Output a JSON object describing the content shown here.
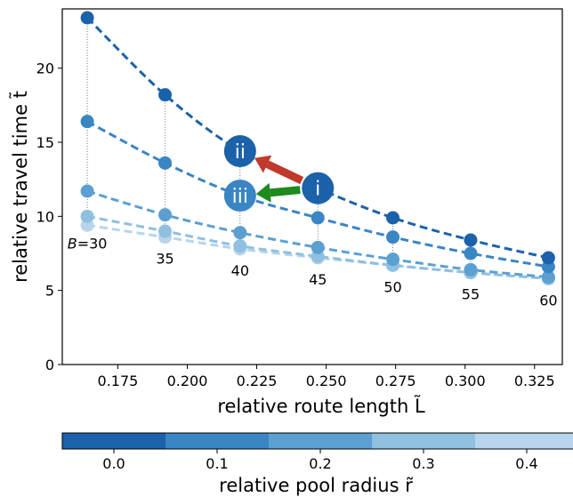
{
  "chart_data": {
    "type": "scatter",
    "xlabel": "relative route length L̃",
    "ylabel": "relative travel time t̃",
    "x_range": [
      0.155,
      0.335
    ],
    "y_range": [
      0,
      24
    ],
    "x_ticks": [
      0.175,
      0.2,
      0.225,
      0.25,
      0.275,
      0.3,
      0.325
    ],
    "x_tick_labels": [
      "0.175",
      "0.200",
      "0.225",
      "0.250",
      "0.275",
      "0.300",
      "0.325"
    ],
    "y_ticks": [
      0,
      5,
      10,
      15,
      20
    ],
    "y_tick_labels": [
      "0",
      "5",
      "10",
      "15",
      "20"
    ],
    "x": [
      0.164,
      0.192,
      0.219,
      0.247,
      0.274,
      0.302,
      0.33
    ],
    "B_labels": [
      "B=30",
      "35",
      "40",
      "45",
      "50",
      "55",
      "60"
    ],
    "series": [
      {
        "r": 0.0,
        "color": "#1c62aa",
        "values": [
          23.4,
          18.2,
          14.4,
          11.9,
          9.9,
          8.4,
          7.2
        ]
      },
      {
        "r": 0.1,
        "color": "#3a85c4",
        "values": [
          16.4,
          13.6,
          11.4,
          9.9,
          8.6,
          7.5,
          6.6
        ]
      },
      {
        "r": 0.2,
        "color": "#5ba0d0",
        "values": [
          11.7,
          10.1,
          8.9,
          7.9,
          7.1,
          6.4,
          5.9
        ]
      },
      {
        "r": 0.3,
        "color": "#8fc0e0",
        "values": [
          10.0,
          9.0,
          8.0,
          7.3,
          6.7,
          6.2,
          5.8
        ]
      },
      {
        "r": 0.4,
        "color": "#b7d4ea",
        "values": [
          9.4,
          8.6,
          7.8,
          7.2,
          6.7,
          6.2,
          5.8
        ]
      }
    ],
    "annotations": [
      {
        "label": "i",
        "x": 0.247,
        "y": 11.9,
        "color": "#1c62aa"
      },
      {
        "label": "ii",
        "x": 0.219,
        "y": 14.4,
        "color": "#1c62aa"
      },
      {
        "label": "iii",
        "x": 0.219,
        "y": 11.4,
        "color": "#3a85c4"
      }
    ],
    "arrows": [
      {
        "from": "i",
        "to": "ii",
        "color": "#c0392b"
      },
      {
        "from": "i",
        "to": "iii",
        "color": "#1e8a1e"
      }
    ],
    "colorbar": {
      "label": "relative pool radius r̃",
      "ticks": [
        0.0,
        0.1,
        0.2,
        0.3,
        0.4
      ],
      "tick_labels": [
        "0.0",
        "0.1",
        "0.2",
        "0.3",
        "0.4"
      ],
      "colors": [
        "#1c62aa",
        "#3a85c4",
        "#5ba0d0",
        "#8fc0e0",
        "#b7d4ea"
      ]
    }
  }
}
